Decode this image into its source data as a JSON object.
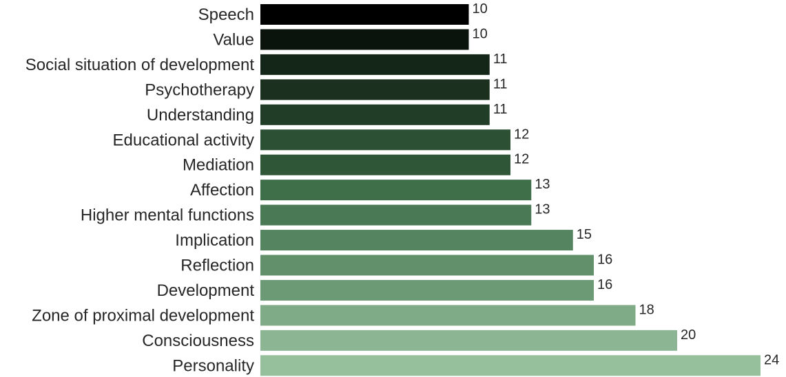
{
  "chart_data": {
    "type": "bar",
    "orientation": "horizontal",
    "categories": [
      "Speech",
      "Value",
      "Social situation of development",
      "Psychotherapy",
      "Understanding",
      "Educational activity",
      "Mediation",
      "Affection",
      "Higher mental functions",
      "Implication",
      "Reflection",
      "Development",
      "Zone of proximal development",
      "Consciousness",
      "Personality"
    ],
    "values": [
      10,
      10,
      11,
      11,
      11,
      12,
      12,
      13,
      13,
      15,
      16,
      16,
      18,
      20,
      24
    ],
    "colors": [
      "#000000",
      "#0a140c",
      "#142617",
      "#1b301e",
      "#213d27",
      "#2b5033",
      "#2f5637",
      "#3e6f49",
      "#4a7a55",
      "#558461",
      "#62906b",
      "#6c9a75",
      "#7fab87",
      "#8cb593",
      "#96bf9c"
    ],
    "title": "",
    "xlabel": "",
    "ylabel": "",
    "xlim": [
      0,
      24
    ],
    "grid": false,
    "legend": "none",
    "data_labels": true
  }
}
